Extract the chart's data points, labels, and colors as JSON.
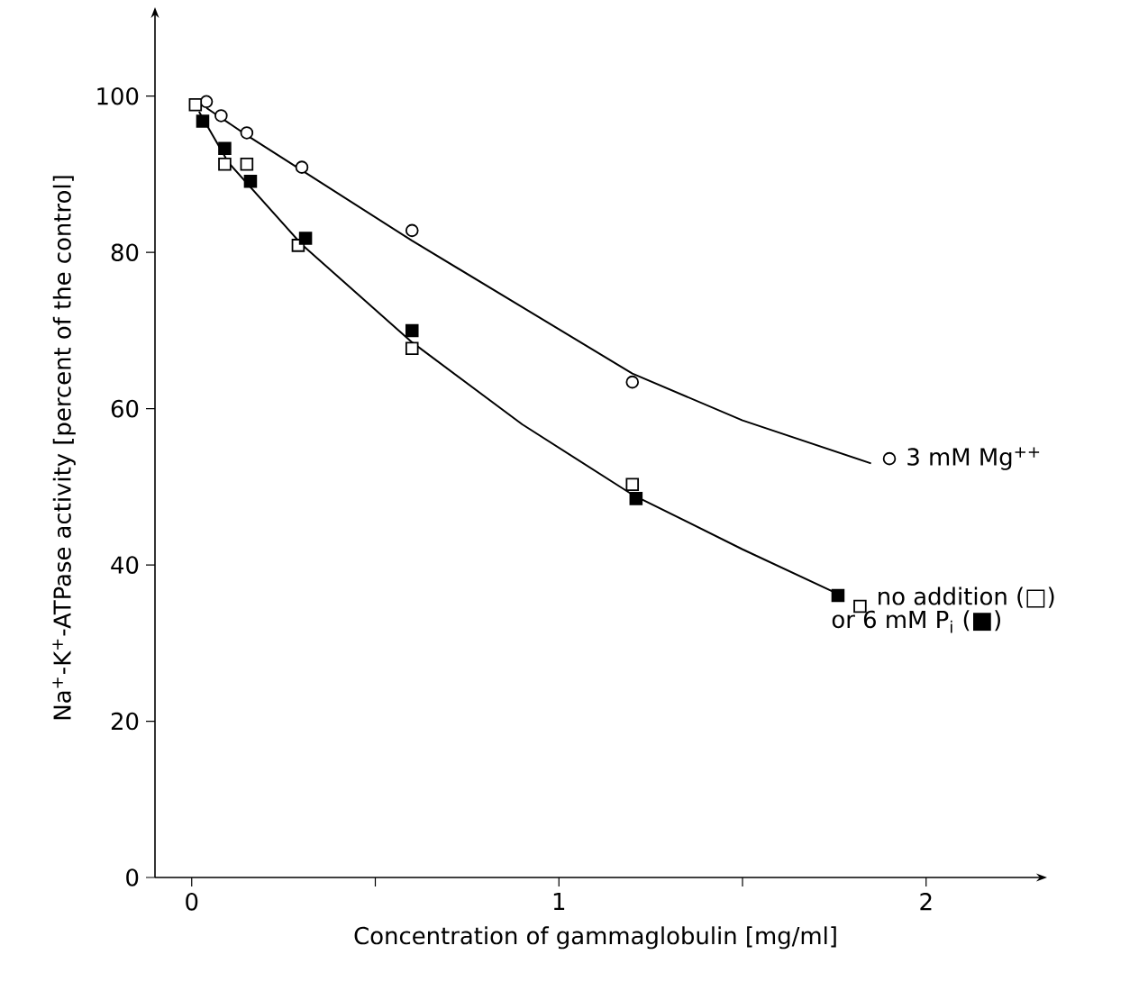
{
  "chart_data": {
    "type": "scatter",
    "xlabel": "Concentration of gammaglobulin [mg/ml]",
    "ylabel": "Na$^{+}$-K$^{+}$-ATPase activity [percent of the control]",
    "xlim": [
      -0.1,
      2.3
    ],
    "ylim": [
      0,
      110
    ],
    "xticks": [
      0,
      {
        "value": 0.5,
        "label": null
      },
      1,
      {
        "value": 1.5,
        "label": null
      },
      2
    ],
    "yticks": [
      0,
      20,
      40,
      60,
      80,
      100
    ],
    "series": [
      {
        "name": "3 mM Mg$^{++}$",
        "marker": "circle",
        "color": "#ffffff",
        "x": [
          0.04,
          0.08,
          0.15,
          0.3,
          0.6,
          1.2,
          1.9
        ],
        "values": [
          99.3,
          97.5,
          95.3,
          90.9,
          82.8,
          63.4,
          53.6
        ]
      },
      {
        "name": "no addition (□)",
        "marker": "square",
        "color": "#ffffff",
        "x": [
          0.01,
          0.09,
          0.15,
          0.29,
          0.6,
          1.2,
          1.82
        ],
        "values": [
          98.9,
          91.3,
          91.3,
          80.9,
          67.7,
          50.3,
          34.7
        ]
      },
      {
        "name": "or 6 mM P$_{i}$ (■)",
        "marker": "square",
        "color": "#000000",
        "x": [
          0.03,
          0.09,
          0.16,
          0.31,
          0.6,
          1.21,
          1.76
        ],
        "values": [
          96.8,
          93.3,
          89.1,
          81.8,
          70.0,
          48.5,
          36.1
        ]
      },
      {
        "type": "line",
        "marker": "none",
        "color": "#000000",
        "x": [
          0.04,
          0.15,
          0.3,
          0.6,
          0.9,
          1.2,
          1.5,
          1.85
        ],
        "values": [
          98.5,
          95,
          90.5,
          81.5,
          73,
          64.5,
          58.5,
          53
        ]
      },
      {
        "type": "line",
        "marker": "none",
        "color": "#000000",
        "x": [
          0.02,
          0.1,
          0.3,
          0.6,
          0.9,
          1.2,
          1.5,
          1.75
        ],
        "values": [
          98,
          91.5,
          81,
          68.5,
          58,
          49,
          42,
          36.5
        ]
      }
    ]
  }
}
